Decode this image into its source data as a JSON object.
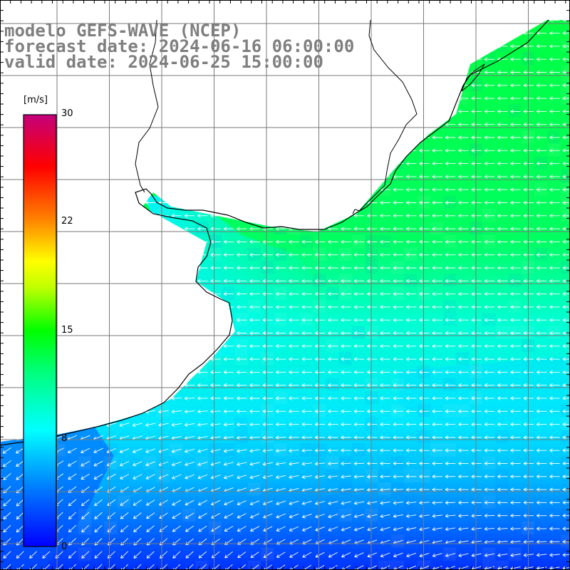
{
  "title": {
    "model": "modelo GEFS-WAVE (NCEP)",
    "forecast": "forecast date: 2024-06-16 06:00:00",
    "valid": "valid date: 2024-06-25 15:00:00"
  },
  "colorbar": {
    "unit": "[m/s]",
    "tick_labels": [
      "30",
      "22",
      "15",
      "8",
      "0"
    ],
    "range": [
      0,
      30
    ],
    "colors": [
      "#0000ff",
      "#00a0ff",
      "#00ffff",
      "#00ff00",
      "#ffff00",
      "#ff8000",
      "#ff0000",
      "#cc0088"
    ]
  },
  "field": {
    "quantity": "wind speed",
    "direction": "arrows pointing west to south-west",
    "land_color": "#ffffff",
    "coast_color": "#000000",
    "grid_color": "#777777"
  }
}
